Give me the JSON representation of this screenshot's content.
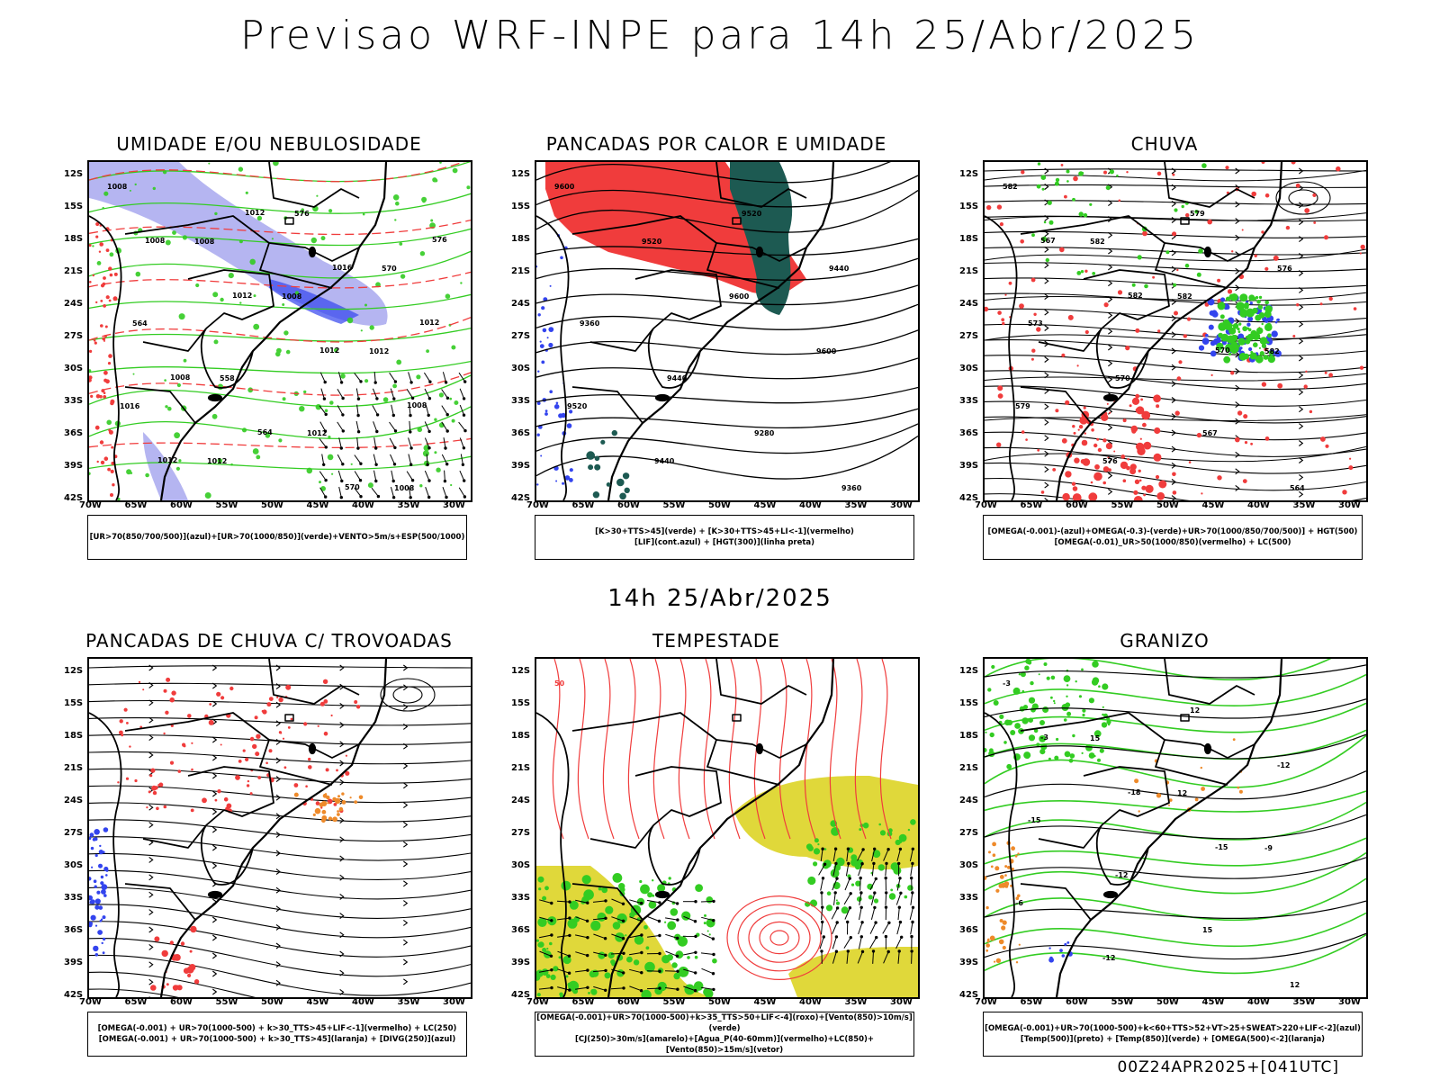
{
  "header": {
    "title": "Previsao WRF-INPE  para 14h 25/Abr/2025"
  },
  "mid_label": "14h 25/Abr/2025",
  "footer": {
    "run_stamp": "00Z24APR2025+[041UTC]"
  },
  "axis": {
    "lat_labels": [
      "12S",
      "15S",
      "18S",
      "21S",
      "24S",
      "27S",
      "30S",
      "33S",
      "36S",
      "39S",
      "42S"
    ],
    "lon_labels": [
      "70W",
      "65W",
      "60W",
      "55W",
      "50W",
      "45W",
      "40W",
      "35W",
      "30W"
    ]
  },
  "colors": {
    "red": "#f03c3c",
    "green": "#33cc22",
    "blue": "#3344ee",
    "lavender": "#a8a8ee",
    "darkteal": "#1d5a52",
    "yellow": "#e0d83a",
    "orange": "#ee8a2a",
    "black": "#000000"
  },
  "panels": [
    {
      "id": "umidade",
      "title": "UMIDADE E/OU NEBULOSIDADE",
      "legend": [
        "[UR>70(850/700/500)](azul)+[UR>70(1000/850)](verde)+VENTO>5m/s+ESP(500/1000)"
      ],
      "contour_labels": [
        "1008",
        "1008",
        "1008",
        "1012",
        "1016",
        "1012",
        "576",
        "570",
        "564",
        "558",
        "1012",
        "1008",
        "1008",
        "1012",
        "1012",
        "1008",
        "1012",
        "1012",
        "1016",
        "1012",
        "1008",
        "564",
        "570",
        "576"
      ]
    },
    {
      "id": "pancadas_calor",
      "title": "PANCADAS POR CALOR E UMIDADE",
      "legend": [
        "[K>30+TTS>45](verde) + [K>30+TTS>45+LI<-1](vermelho)",
        "[LIF](cont.azul) + [HGT(300)](linha preta)"
      ],
      "contour_labels": [
        "9600",
        "9520",
        "9600",
        "9600",
        "9520",
        "9440",
        "9520",
        "9440",
        "9360",
        "9440",
        "9280",
        "9360"
      ]
    },
    {
      "id": "chuva",
      "title": "CHUVA",
      "legend": [
        "[OMEGA(-0.001)-(azul)+OMEGA(-0.3)-(verde)+UR>70(1000/850/700/500)] + HGT(500)",
        "[OMEGA(-0.01)_UR>50(1000/850)(vermelho) + LC(500)"
      ],
      "contour_labels": [
        "582",
        "582",
        "582",
        "582",
        "579",
        "576",
        "579",
        "576",
        "573",
        "570",
        "567",
        "564",
        "567",
        "582",
        "570"
      ]
    },
    {
      "id": "pancadas_trovoadas",
      "title": "PANCADAS DE CHUVA C/ TROVOADAS",
      "legend": [
        "[OMEGA(-0.001) + UR>70(1000-500) + k>30_TTS>45+LIF<-1](vermelho) + LC(250)",
        "[OMEGA(-0.001) + UR>70(1000-500) + k>30_TTS>45](laranja) + [DIVG(250)](azul)"
      ],
      "contour_labels": []
    },
    {
      "id": "tempestade",
      "title": "TEMPESTADE",
      "legend": [
        "[OMEGA(-0.001)+UR>70(1000-500)+k>35_TTS>50+LIF<-4](roxo)+[Vento(850)>10m/s](verde)",
        "[CJ(250)>30m/s](amarelo)+[Agua_P(40-60mm)](vermelho)+LC(850)+[Vento(850)>15m/s](vetor)"
      ],
      "contour_labels": [
        "50"
      ]
    },
    {
      "id": "granizo",
      "title": "GRANIZO",
      "legend": [
        "[OMEGA(-0.001)+UR>70(1000-500)+k<60+TTS>52+VT>25+SWEAT>220+LIF<-2](azul)",
        "[Temp(500)](preto) + [Temp(850)](verde) + [OMEGA(500)<-2](laranja)"
      ],
      "contour_labels": [
        "-3",
        "15",
        "12",
        "-9",
        "-6",
        "-12",
        "12",
        "-12",
        "-15",
        "-12",
        "15",
        "12",
        "-3",
        "-18",
        "-15"
      ]
    }
  ]
}
